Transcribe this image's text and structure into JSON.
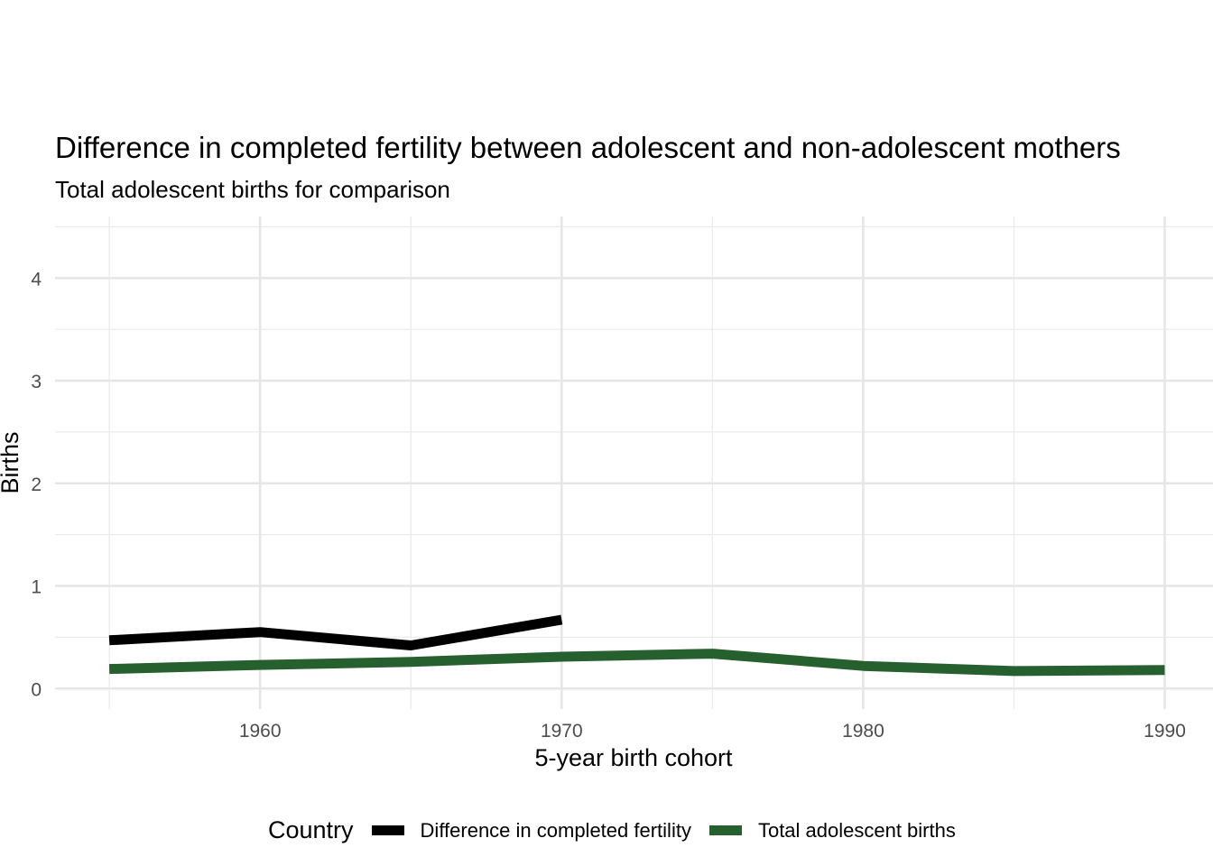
{
  "chart_data": {
    "type": "line",
    "title": "Difference in completed fertility between adolescent and non-adolescent mothers",
    "subtitle": "Total adolescent births for comparison",
    "xlabel": "5-year birth cohort",
    "ylabel": "Births",
    "xlim": [
      1953.2,
      1991.6
    ],
    "ylim": [
      -0.2,
      4.6
    ],
    "x_ticks": [
      1960,
      1970,
      1980,
      1990
    ],
    "y_ticks": [
      0,
      1,
      2,
      3,
      4
    ],
    "grid": true,
    "legend": {
      "title": "Country",
      "position": "bottom"
    },
    "series": [
      {
        "name": "Difference in completed fertility",
        "color": "#000000",
        "x": [
          1955,
          1960,
          1965,
          1970
        ],
        "y": [
          0.47,
          0.55,
          0.42,
          0.67
        ]
      },
      {
        "name": "Total adolescent births",
        "color": "#27602f",
        "x": [
          1955,
          1960,
          1965,
          1970,
          1975,
          1980,
          1985,
          1990
        ],
        "y": [
          0.19,
          0.23,
          0.26,
          0.31,
          0.34,
          0.22,
          0.17,
          0.18
        ]
      }
    ]
  }
}
